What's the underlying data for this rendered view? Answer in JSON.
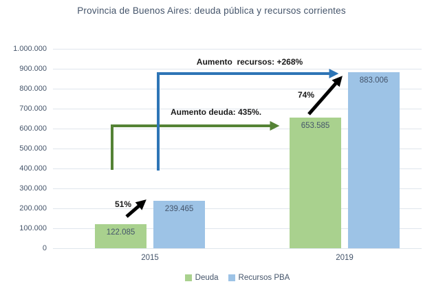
{
  "title": "Provincia de Buenos Aires: deuda pública y recursos corrientes",
  "chart_data": {
    "type": "bar",
    "categories": [
      "2015",
      "2019"
    ],
    "series": [
      {
        "name": "Deuda",
        "values": [
          122085,
          653585
        ],
        "labels": [
          "122.085",
          "653.585"
        ],
        "color": "#a9d18e"
      },
      {
        "name": "Recursos PBA",
        "values": [
          239465,
          883006
        ],
        "labels": [
          "239.465",
          "883.006"
        ],
        "color": "#9dc3e6"
      }
    ],
    "xlabel": "",
    "ylabel": "",
    "ylim": [
      0,
      1000000
    ],
    "ytick_labels": [
      "0",
      "100.000",
      "200.000",
      "300.000",
      "400.000",
      "500.000",
      "600.000",
      "700.000",
      "800.000",
      "900.000",
      "1.000.000"
    ],
    "grid": true,
    "legend_position": "bottom",
    "annotations": {
      "recursos": {
        "text": "Aumento  recursos: +268%",
        "arrow_color": "#2e75b6"
      },
      "deuda": {
        "text": "Aumento deuda: 435%.",
        "arrow_color": "#548235"
      },
      "pct_2015": {
        "text": "51%",
        "arrow_color": "#000000"
      },
      "pct_2019": {
        "text": "74%",
        "arrow_color": "#000000"
      }
    },
    "colors": {
      "title_text": "#44546a",
      "axis_text": "#44546a",
      "grid_line": "#dfe5ec",
      "annotation_text": "#1a1a1a"
    }
  }
}
